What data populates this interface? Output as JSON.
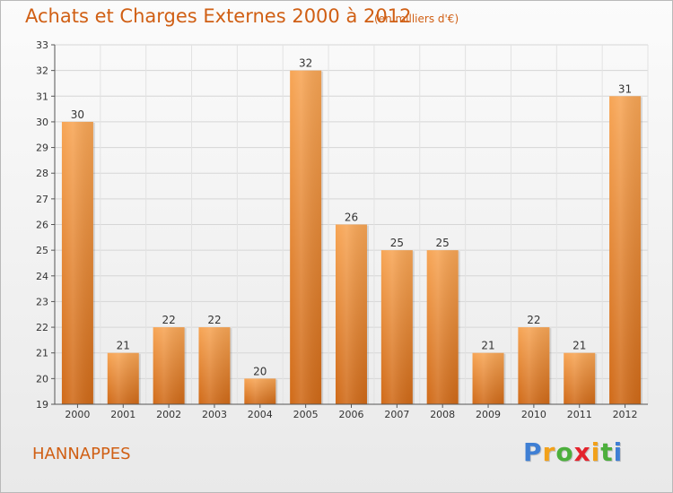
{
  "header": {
    "title": "Achats et Charges Externes 2000 à 2012",
    "subtitle": "(en milliers d'€)"
  },
  "footer": {
    "commune": "HANNAPPES",
    "brand": "Proxiti"
  },
  "colors": {
    "accent": "#d05f14",
    "bar_light": "#f7a555",
    "bar_dark": "#d06a18",
    "background": "#f2f2f2"
  },
  "chart_data": {
    "type": "bar",
    "categories": [
      "2000",
      "2001",
      "2002",
      "2003",
      "2004",
      "2005",
      "2006",
      "2007",
      "2008",
      "2009",
      "2010",
      "2011",
      "2012"
    ],
    "values": [
      30,
      21,
      22,
      22,
      20,
      32,
      26,
      25,
      25,
      21,
      22,
      21,
      31
    ],
    "title": "Achats et Charges Externes 2000 à 2012",
    "subtitle": "(en milliers d'€)",
    "xlabel": "",
    "ylabel": "",
    "ylim": [
      19,
      33
    ],
    "yticks": [
      19,
      20,
      21,
      22,
      23,
      24,
      25,
      26,
      27,
      28,
      29,
      30,
      31,
      32,
      33
    ],
    "grid": true,
    "legend": "none"
  }
}
